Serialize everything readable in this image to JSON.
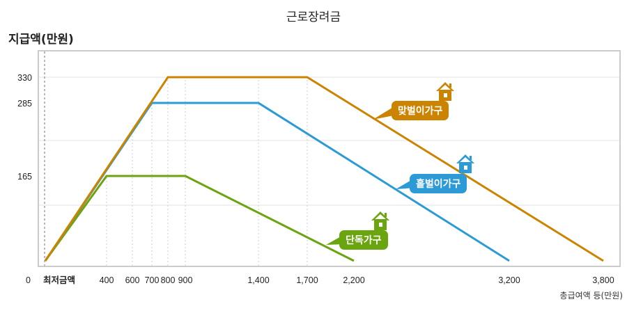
{
  "chart_data": {
    "type": "line",
    "title": "근로장려금",
    "ylabel": "지급액(만원)",
    "xlabel": "총급여액 등(만원)",
    "x_ticks": [
      {
        "value": 0,
        "label": "최저금액"
      },
      {
        "value": 400,
        "label": "400"
      },
      {
        "value": 600,
        "label": "600"
      },
      {
        "value": 700,
        "label": "700"
      },
      {
        "value": 800,
        "label": "800"
      },
      {
        "value": 900,
        "label": "900"
      },
      {
        "value": 1400,
        "label": "1,400"
      },
      {
        "value": 1700,
        "label": "1,700"
      },
      {
        "value": 2200,
        "label": "2,200"
      },
      {
        "value": 3200,
        "label": "3,200"
      },
      {
        "value": 3800,
        "label": "3,800"
      }
    ],
    "y_ticks": [
      {
        "value": 0,
        "label": "0"
      },
      {
        "value": 165,
        "label": "165"
      },
      {
        "value": 285,
        "label": "285"
      },
      {
        "value": 330,
        "label": "330"
      }
    ],
    "grid": true,
    "series": [
      {
        "name": "맞벌이가구",
        "color": "#cc8400",
        "points": [
          [
            0,
            0
          ],
          [
            800,
            330
          ],
          [
            1700,
            330
          ],
          [
            3800,
            0
          ]
        ]
      },
      {
        "name": "홑벌이가구",
        "color": "#2b9ad6",
        "points": [
          [
            0,
            0
          ],
          [
            700,
            285
          ],
          [
            1400,
            285
          ],
          [
            3200,
            0
          ]
        ]
      },
      {
        "name": "단독가구",
        "color": "#6aa510",
        "points": [
          [
            0,
            0
          ],
          [
            400,
            165
          ],
          [
            900,
            165
          ],
          [
            2200,
            0
          ]
        ]
      }
    ]
  }
}
